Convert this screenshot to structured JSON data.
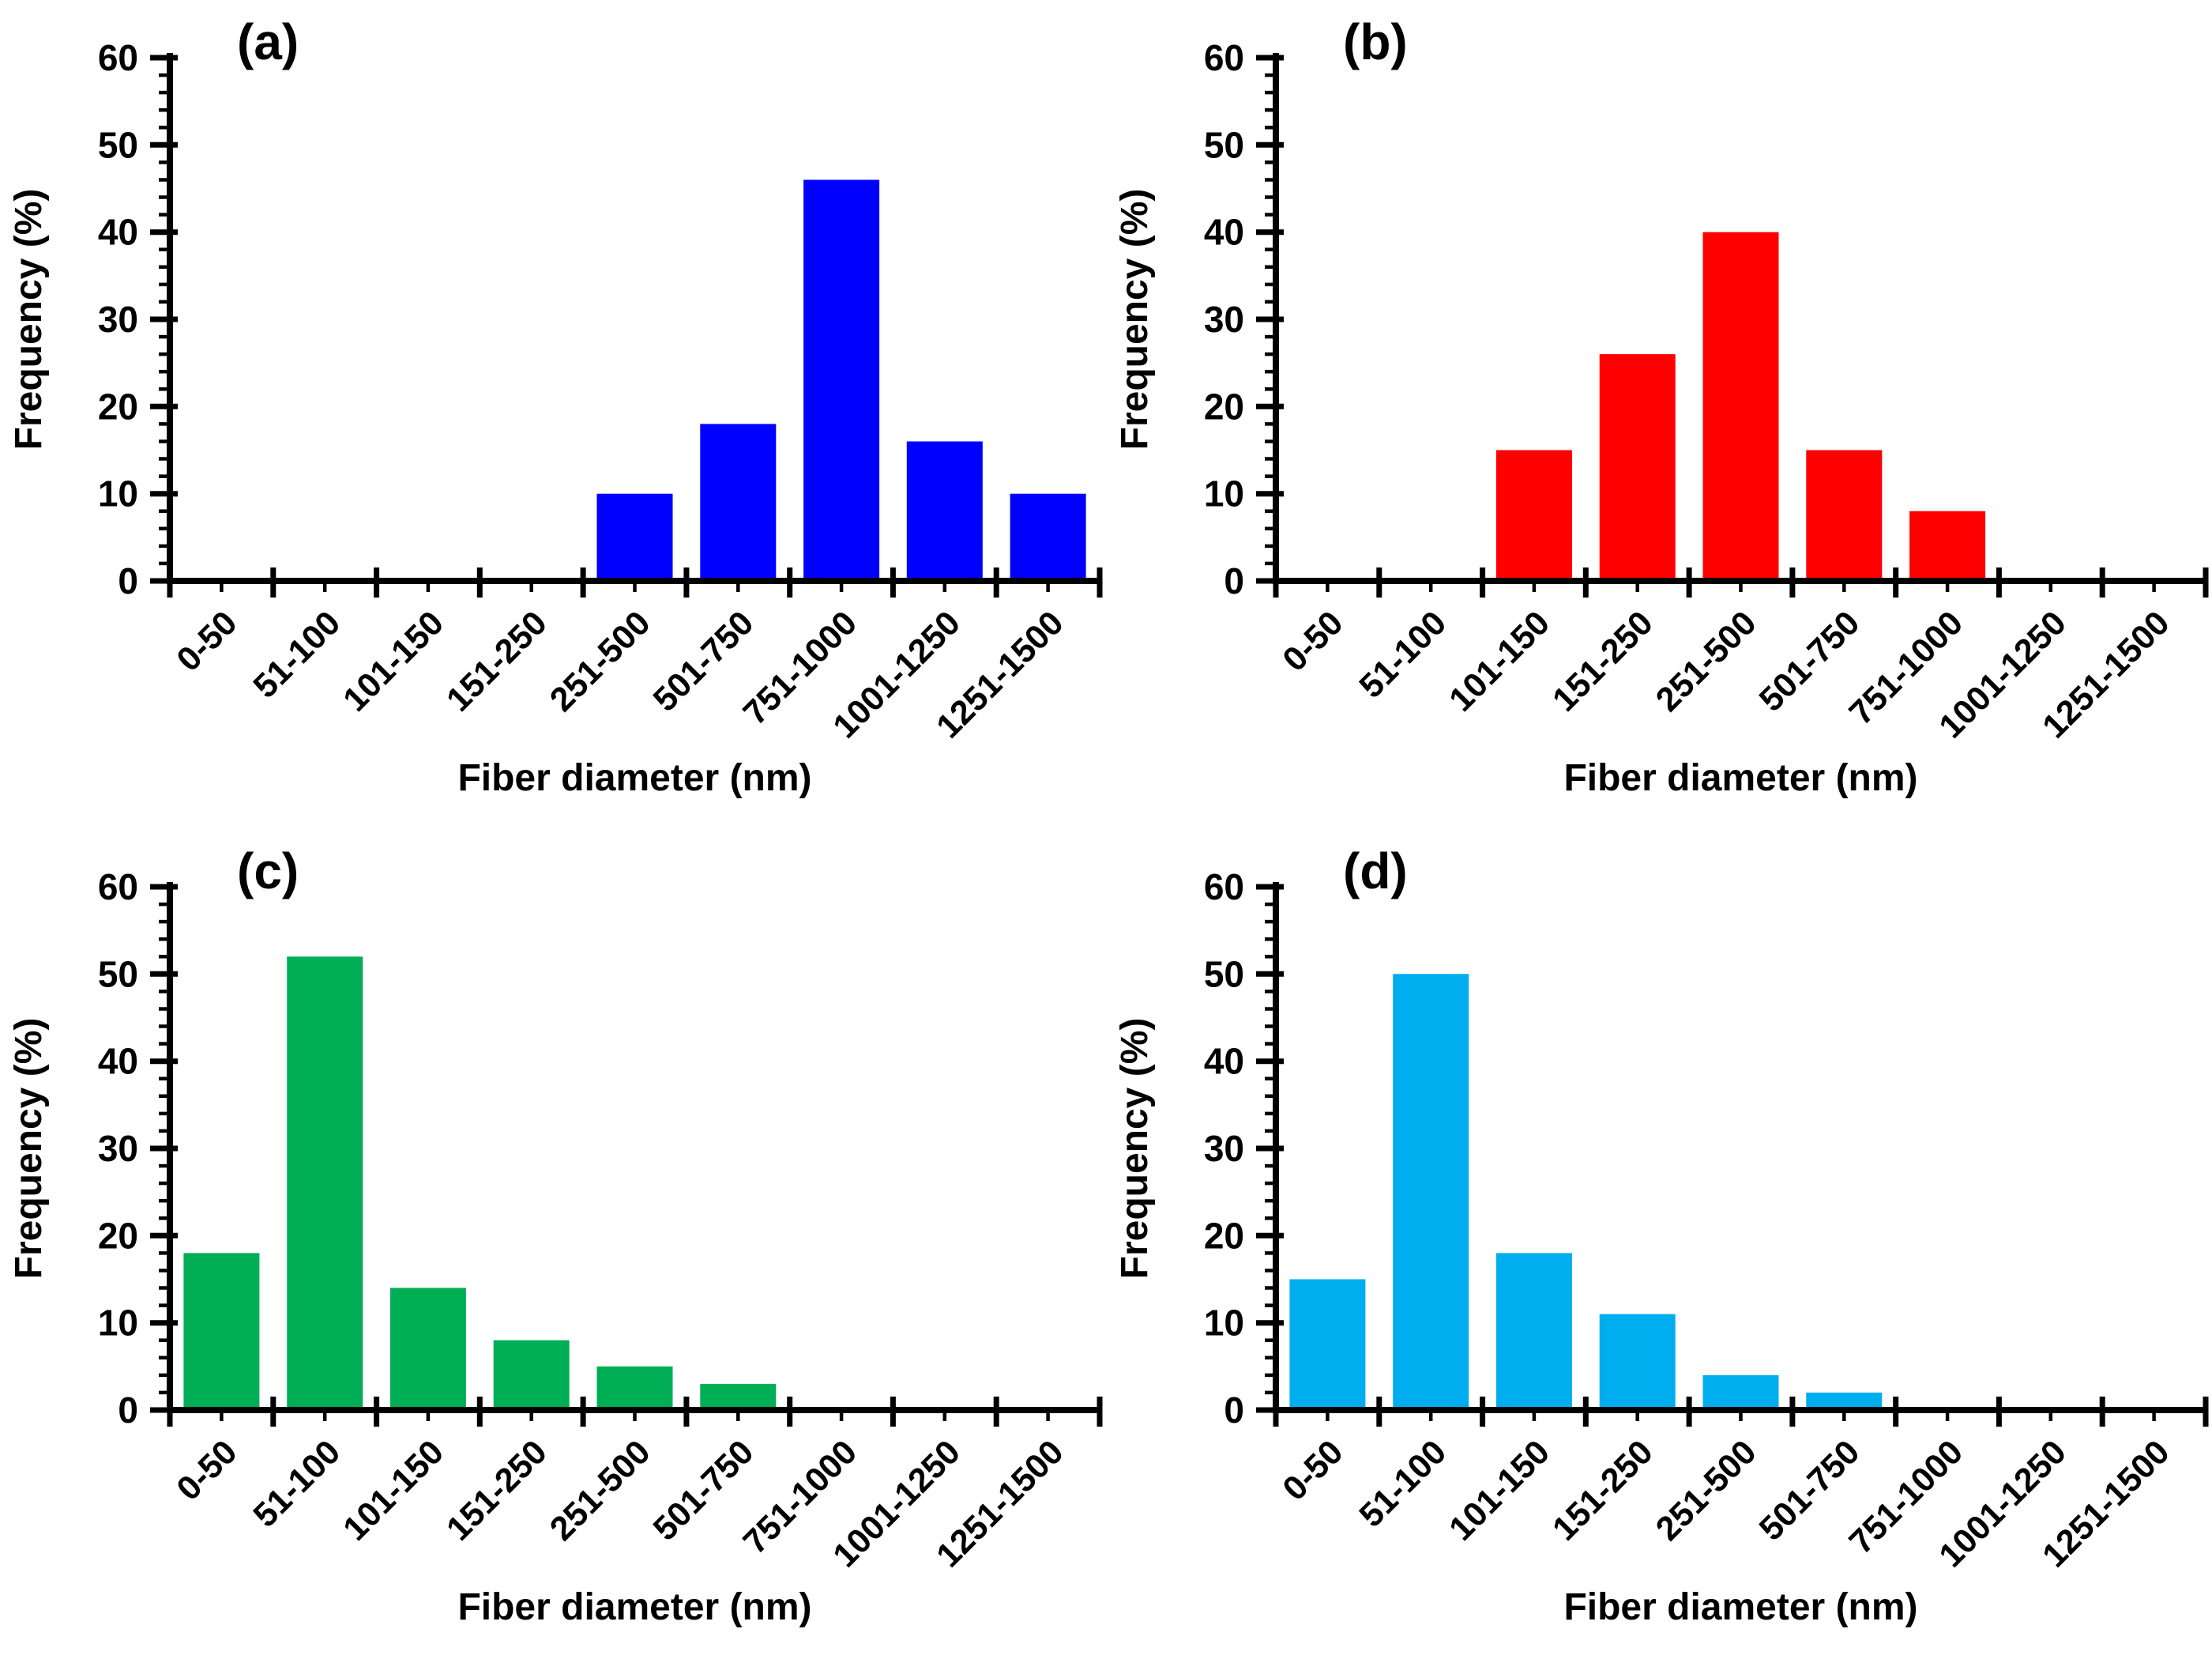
{
  "figure_caption_letters": [
    "(a)",
    "(b)",
    "(c)",
    "(d)"
  ],
  "axis": {
    "xlabel": "Fiber diameter (nm)",
    "ylabel": "Frequency (%)",
    "yticks": [
      0,
      10,
      20,
      30,
      40,
      50,
      60
    ],
    "y_minor_step": 2,
    "ylim": [
      0,
      60
    ]
  },
  "chart_data": [
    {
      "type": "bar",
      "title": "(a)",
      "categories": [
        "0-50",
        "51-100",
        "101-150",
        "151-250",
        "251-500",
        "501-750",
        "751-1000",
        "1001-1250",
        "1251-1500"
      ],
      "values": [
        0,
        0,
        0,
        0,
        10,
        18,
        46,
        16,
        10
      ],
      "bar_color": "#0000FE",
      "xlabel": "Fiber diameter (nm)",
      "ylabel": "Frequency (%)",
      "ylim": [
        0,
        60
      ],
      "yticks": [
        0,
        10,
        20,
        30,
        40,
        50,
        60
      ],
      "y_minor_step": 2,
      "grid": "off",
      "legend": "none"
    },
    {
      "type": "bar",
      "title": "(b)",
      "categories": [
        "0-50",
        "51-100",
        "101-150",
        "151-250",
        "251-500",
        "501-750",
        "751-1000",
        "1001-1250",
        "1251-1500"
      ],
      "values": [
        0,
        0,
        15,
        26,
        40,
        15,
        8,
        0,
        0
      ],
      "bar_color": "#FE0000",
      "xlabel": "Fiber diameter (nm)",
      "ylabel": "Frequency (%)",
      "ylim": [
        0,
        60
      ],
      "yticks": [
        0,
        10,
        20,
        30,
        40,
        50,
        60
      ],
      "y_minor_step": 2,
      "grid": "off",
      "legend": "none"
    },
    {
      "type": "bar",
      "title": "(c)",
      "categories": [
        "0-50",
        "51-100",
        "101-150",
        "151-250",
        "251-500",
        "501-750",
        "751-1000",
        "1001-1250",
        "1251-1500"
      ],
      "values": [
        18,
        52,
        14,
        8,
        5,
        3,
        0,
        0,
        0
      ],
      "bar_color": "#00AE56",
      "xlabel": "Fiber diameter (nm)",
      "ylabel": "Frequency (%)",
      "ylim": [
        0,
        60
      ],
      "yticks": [
        0,
        10,
        20,
        30,
        40,
        50,
        60
      ],
      "y_minor_step": 2,
      "grid": "off",
      "legend": "none"
    },
    {
      "type": "bar",
      "title": "(d)",
      "categories": [
        "0-50",
        "51-100",
        "101-150",
        "151-250",
        "251-500",
        "501-750",
        "751-1000",
        "1001-1250",
        "1251-1500"
      ],
      "values": [
        15,
        50,
        18,
        11,
        4,
        2,
        0,
        0,
        0
      ],
      "bar_color": "#00AEEF",
      "xlabel": "Fiber diameter (nm)",
      "ylabel": "Frequency (%)",
      "ylim": [
        0,
        60
      ],
      "yticks": [
        0,
        10,
        20,
        30,
        40,
        50,
        60
      ],
      "y_minor_step": 2,
      "grid": "off",
      "legend": "none"
    }
  ]
}
